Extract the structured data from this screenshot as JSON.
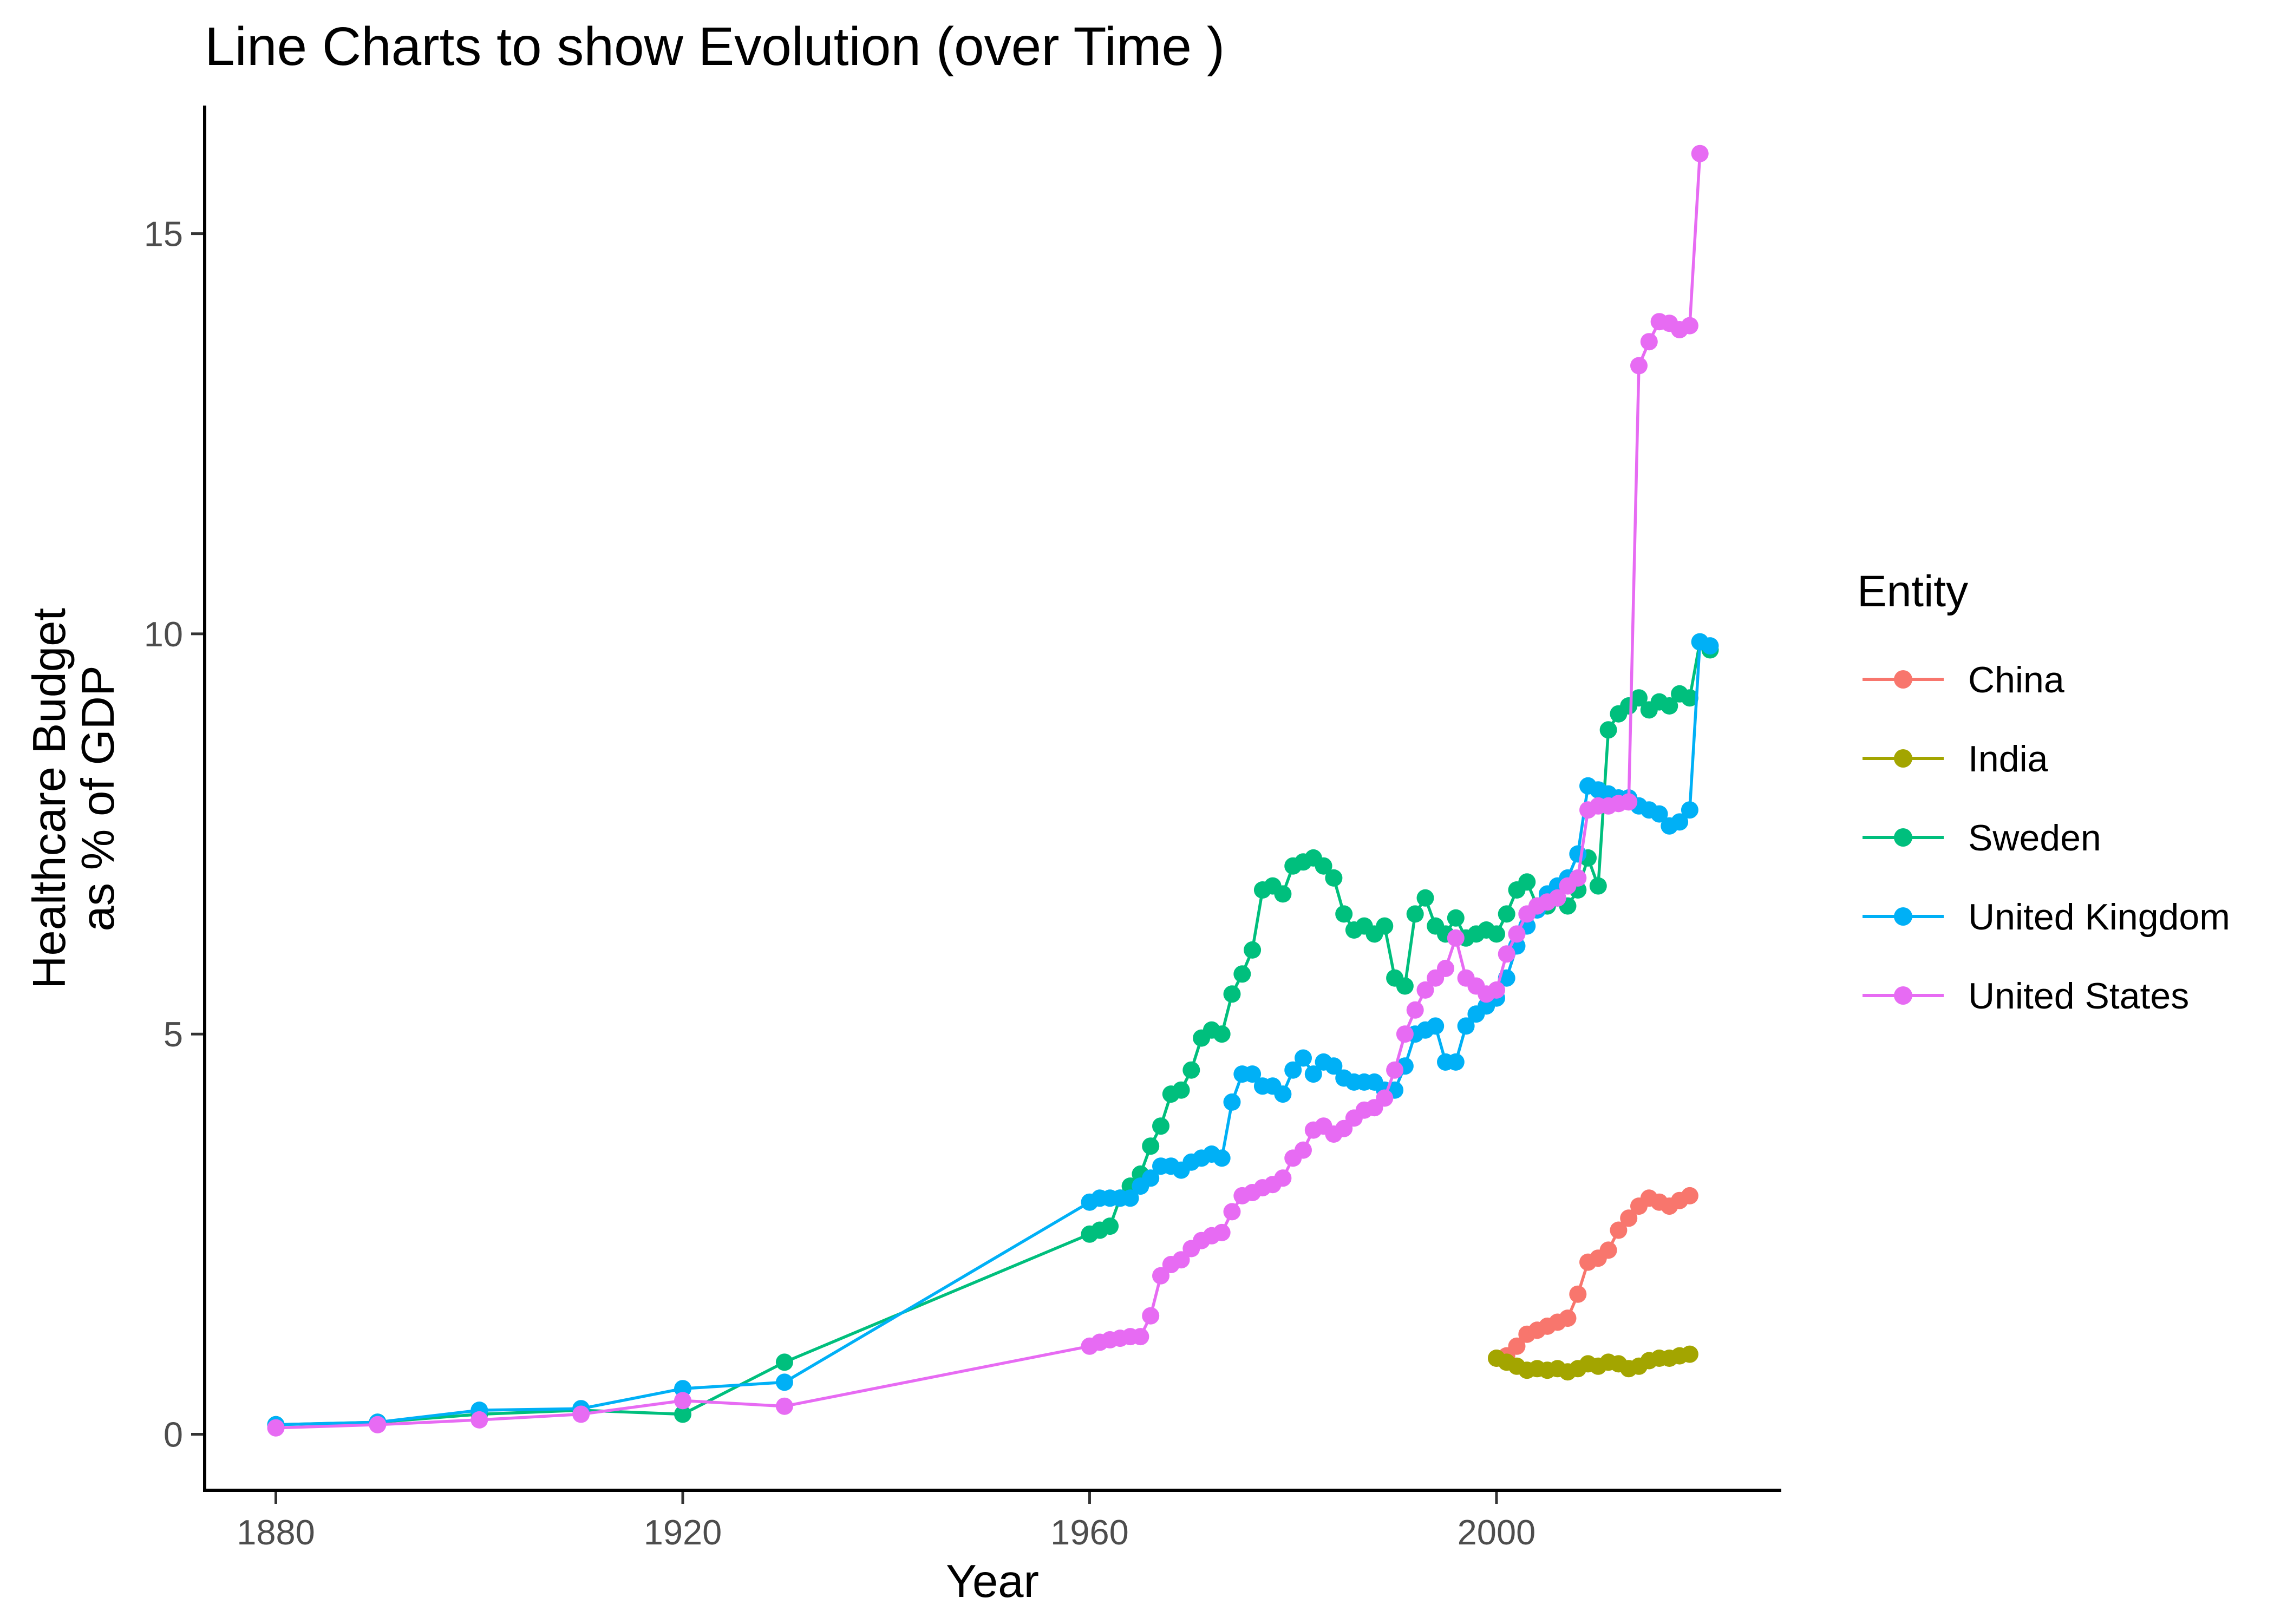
{
  "chart_data": {
    "type": "line",
    "title": "Line Charts to show Evolution (over Time )",
    "xlabel": "Year",
    "ylabel_lines": [
      "Healthcare Budget",
      "as % of GDP"
    ],
    "xlim": [
      1873,
      2028
    ],
    "ylim": [
      -0.7,
      16.6
    ],
    "x_ticks": [
      1880,
      1920,
      1960,
      2000
    ],
    "y_ticks": [
      0,
      5,
      10,
      15
    ],
    "grid": false,
    "legend": {
      "title": "Entity",
      "position": "right"
    },
    "series": [
      {
        "name": "China",
        "color": "#F8766D",
        "points": [
          [
            2000,
            0.95
          ],
          [
            2001,
            0.98
          ],
          [
            2002,
            1.1
          ],
          [
            2003,
            1.25
          ],
          [
            2004,
            1.3
          ],
          [
            2005,
            1.35
          ],
          [
            2006,
            1.4
          ],
          [
            2007,
            1.45
          ],
          [
            2008,
            1.75
          ],
          [
            2009,
            2.15
          ],
          [
            2010,
            2.2
          ],
          [
            2011,
            2.3
          ],
          [
            2012,
            2.55
          ],
          [
            2013,
            2.7
          ],
          [
            2014,
            2.85
          ],
          [
            2015,
            2.95
          ],
          [
            2016,
            2.9
          ],
          [
            2017,
            2.85
          ],
          [
            2018,
            2.92
          ],
          [
            2019,
            2.98
          ]
        ]
      },
      {
        "name": "India",
        "color": "#A3A500",
        "points": [
          [
            2000,
            0.95
          ],
          [
            2001,
            0.9
          ],
          [
            2002,
            0.85
          ],
          [
            2003,
            0.8
          ],
          [
            2004,
            0.82
          ],
          [
            2005,
            0.8
          ],
          [
            2006,
            0.82
          ],
          [
            2007,
            0.78
          ],
          [
            2008,
            0.82
          ],
          [
            2009,
            0.88
          ],
          [
            2010,
            0.85
          ],
          [
            2011,
            0.9
          ],
          [
            2012,
            0.88
          ],
          [
            2013,
            0.82
          ],
          [
            2014,
            0.85
          ],
          [
            2015,
            0.92
          ],
          [
            2016,
            0.95
          ],
          [
            2017,
            0.95
          ],
          [
            2018,
            0.98
          ],
          [
            2019,
            1.0
          ]
        ]
      },
      {
        "name": "Sweden",
        "color": "#00BF7D",
        "points": [
          [
            1880,
            0.12
          ],
          [
            1890,
            0.15
          ],
          [
            1900,
            0.25
          ],
          [
            1910,
            0.3
          ],
          [
            1920,
            0.25
          ],
          [
            1930,
            0.9
          ],
          [
            1960,
            2.5
          ],
          [
            1961,
            2.55
          ],
          [
            1962,
            2.6
          ],
          [
            1963,
            2.95
          ],
          [
            1964,
            3.1
          ],
          [
            1965,
            3.25
          ],
          [
            1966,
            3.6
          ],
          [
            1967,
            3.85
          ],
          [
            1968,
            4.25
          ],
          [
            1969,
            4.3
          ],
          [
            1970,
            4.55
          ],
          [
            1971,
            4.95
          ],
          [
            1972,
            5.05
          ],
          [
            1973,
            5.0
          ],
          [
            1974,
            5.5
          ],
          [
            1975,
            5.75
          ],
          [
            1976,
            6.05
          ],
          [
            1977,
            6.8
          ],
          [
            1978,
            6.85
          ],
          [
            1979,
            6.75
          ],
          [
            1980,
            7.1
          ],
          [
            1981,
            7.15
          ],
          [
            1982,
            7.2
          ],
          [
            1983,
            7.1
          ],
          [
            1984,
            6.95
          ],
          [
            1985,
            6.5
          ],
          [
            1986,
            6.3
          ],
          [
            1987,
            6.35
          ],
          [
            1988,
            6.25
          ],
          [
            1989,
            6.35
          ],
          [
            1990,
            5.7
          ],
          [
            1991,
            5.6
          ],
          [
            1992,
            6.5
          ],
          [
            1993,
            6.7
          ],
          [
            1994,
            6.35
          ],
          [
            1995,
            6.25
          ],
          [
            1996,
            6.45
          ],
          [
            1997,
            6.2
          ],
          [
            1998,
            6.25
          ],
          [
            1999,
            6.3
          ],
          [
            2000,
            6.25
          ],
          [
            2001,
            6.5
          ],
          [
            2002,
            6.8
          ],
          [
            2003,
            6.9
          ],
          [
            2004,
            6.6
          ],
          [
            2005,
            6.6
          ],
          [
            2006,
            6.7
          ],
          [
            2007,
            6.6
          ],
          [
            2008,
            6.8
          ],
          [
            2009,
            7.2
          ],
          [
            2010,
            6.85
          ],
          [
            2011,
            8.8
          ],
          [
            2012,
            9.0
          ],
          [
            2013,
            9.1
          ],
          [
            2014,
            9.2
          ],
          [
            2015,
            9.05
          ],
          [
            2016,
            9.15
          ],
          [
            2017,
            9.1
          ],
          [
            2018,
            9.25
          ],
          [
            2019,
            9.2
          ],
          [
            2020,
            9.9
          ],
          [
            2021,
            9.8
          ]
        ]
      },
      {
        "name": "United Kingdom",
        "color": "#00B0F6",
        "points": [
          [
            1880,
            0.12
          ],
          [
            1890,
            0.15
          ],
          [
            1900,
            0.3
          ],
          [
            1910,
            0.32
          ],
          [
            1920,
            0.57
          ],
          [
            1930,
            0.65
          ],
          [
            1960,
            2.9
          ],
          [
            1961,
            2.95
          ],
          [
            1962,
            2.95
          ],
          [
            1963,
            2.95
          ],
          [
            1964,
            2.95
          ],
          [
            1965,
            3.1
          ],
          [
            1966,
            3.2
          ],
          [
            1967,
            3.35
          ],
          [
            1968,
            3.35
          ],
          [
            1969,
            3.3
          ],
          [
            1970,
            3.4
          ],
          [
            1971,
            3.45
          ],
          [
            1972,
            3.5
          ],
          [
            1973,
            3.45
          ],
          [
            1974,
            4.15
          ],
          [
            1975,
            4.5
          ],
          [
            1976,
            4.5
          ],
          [
            1977,
            4.35
          ],
          [
            1978,
            4.35
          ],
          [
            1979,
            4.25
          ],
          [
            1980,
            4.55
          ],
          [
            1981,
            4.7
          ],
          [
            1982,
            4.5
          ],
          [
            1983,
            4.65
          ],
          [
            1984,
            4.6
          ],
          [
            1985,
            4.45
          ],
          [
            1986,
            4.4
          ],
          [
            1987,
            4.4
          ],
          [
            1988,
            4.4
          ],
          [
            1989,
            4.3
          ],
          [
            1990,
            4.3
          ],
          [
            1991,
            4.6
          ],
          [
            1992,
            5.0
          ],
          [
            1993,
            5.05
          ],
          [
            1994,
            5.1
          ],
          [
            1995,
            4.65
          ],
          [
            1996,
            4.65
          ],
          [
            1997,
            5.1
          ],
          [
            1998,
            5.25
          ],
          [
            1999,
            5.35
          ],
          [
            2000,
            5.45
          ],
          [
            2001,
            5.7
          ],
          [
            2002,
            6.1
          ],
          [
            2003,
            6.35
          ],
          [
            2004,
            6.55
          ],
          [
            2005,
            6.75
          ],
          [
            2006,
            6.85
          ],
          [
            2007,
            6.95
          ],
          [
            2008,
            7.25
          ],
          [
            2009,
            8.1
          ],
          [
            2010,
            8.05
          ],
          [
            2011,
            8.0
          ],
          [
            2012,
            7.95
          ],
          [
            2013,
            7.95
          ],
          [
            2014,
            7.85
          ],
          [
            2015,
            7.8
          ],
          [
            2016,
            7.75
          ],
          [
            2017,
            7.6
          ],
          [
            2018,
            7.65
          ],
          [
            2019,
            7.8
          ],
          [
            2020,
            9.9
          ],
          [
            2021,
            9.85
          ]
        ]
      },
      {
        "name": "United States",
        "color": "#E76BF3",
        "points": [
          [
            1880,
            0.08
          ],
          [
            1890,
            0.12
          ],
          [
            1900,
            0.18
          ],
          [
            1910,
            0.25
          ],
          [
            1920,
            0.42
          ],
          [
            1930,
            0.35
          ],
          [
            1960,
            1.1
          ],
          [
            1961,
            1.15
          ],
          [
            1962,
            1.18
          ],
          [
            1963,
            1.2
          ],
          [
            1964,
            1.22
          ],
          [
            1965,
            1.22
          ],
          [
            1966,
            1.48
          ],
          [
            1967,
            1.98
          ],
          [
            1968,
            2.12
          ],
          [
            1969,
            2.18
          ],
          [
            1970,
            2.32
          ],
          [
            1971,
            2.42
          ],
          [
            1972,
            2.48
          ],
          [
            1973,
            2.52
          ],
          [
            1974,
            2.78
          ],
          [
            1975,
            2.98
          ],
          [
            1976,
            3.02
          ],
          [
            1977,
            3.08
          ],
          [
            1978,
            3.12
          ],
          [
            1979,
            3.2
          ],
          [
            1980,
            3.45
          ],
          [
            1981,
            3.55
          ],
          [
            1982,
            3.8
          ],
          [
            1983,
            3.85
          ],
          [
            1984,
            3.75
          ],
          [
            1985,
            3.82
          ],
          [
            1986,
            3.95
          ],
          [
            1987,
            4.05
          ],
          [
            1988,
            4.08
          ],
          [
            1989,
            4.2
          ],
          [
            1990,
            4.55
          ],
          [
            1991,
            5.0
          ],
          [
            1992,
            5.3
          ],
          [
            1993,
            5.55
          ],
          [
            1994,
            5.7
          ],
          [
            1995,
            5.82
          ],
          [
            1996,
            6.2
          ],
          [
            1997,
            5.7
          ],
          [
            1998,
            5.6
          ],
          [
            1999,
            5.5
          ],
          [
            2000,
            5.55
          ],
          [
            2001,
            6.0
          ],
          [
            2002,
            6.25
          ],
          [
            2003,
            6.5
          ],
          [
            2004,
            6.6
          ],
          [
            2005,
            6.65
          ],
          [
            2006,
            6.7
          ],
          [
            2007,
            6.85
          ],
          [
            2008,
            6.95
          ],
          [
            2009,
            7.8
          ],
          [
            2010,
            7.85
          ],
          [
            2011,
            7.85
          ],
          [
            2012,
            7.88
          ],
          [
            2013,
            7.9
          ],
          [
            2014,
            13.35
          ],
          [
            2015,
            13.65
          ],
          [
            2016,
            13.9
          ],
          [
            2017,
            13.88
          ],
          [
            2018,
            13.8
          ],
          [
            2019,
            13.85
          ],
          [
            2020,
            16.0
          ]
        ]
      }
    ]
  }
}
